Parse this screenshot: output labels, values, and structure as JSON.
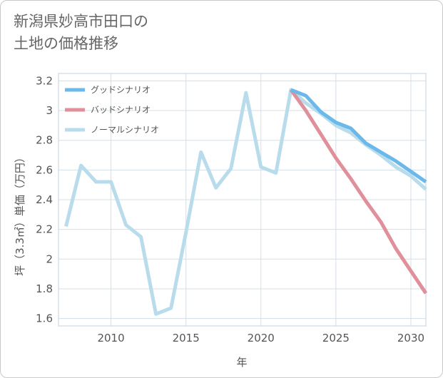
{
  "chart_data": {
    "type": "line",
    "title_lines": [
      "新潟県妙高市田口の",
      "土地の価格推移"
    ],
    "xlabel": "年",
    "ylabel": "坪（3.3㎡）単価（万円）",
    "xlim": [
      2006.5,
      2031
    ],
    "ylim": [
      1.55,
      3.25
    ],
    "xticks": [
      2010,
      2015,
      2020,
      2025,
      2030
    ],
    "yticks": [
      1.6,
      1.8,
      2.0,
      2.2,
      2.4,
      2.6,
      2.8,
      3.0,
      3.2
    ],
    "ytick_labels": [
      "1.6",
      "1.8",
      "2",
      "2.2",
      "2.4",
      "2.6",
      "2.8",
      "3",
      "3.2"
    ],
    "legend_position": "top-left",
    "series": [
      {
        "name": "グッドシナリオ",
        "color": "#6bb8ea",
        "x": [
          2022,
          2023,
          2024,
          2025,
          2026,
          2027,
          2028,
          2029,
          2030,
          2031
        ],
        "y": [
          3.14,
          3.1,
          2.99,
          2.92,
          2.88,
          2.78,
          2.72,
          2.66,
          2.59,
          2.52
        ]
      },
      {
        "name": "バッドシナリオ",
        "color": "#e0909a",
        "x": [
          2022,
          2023,
          2024,
          2025,
          2026,
          2027,
          2028,
          2029,
          2030,
          2031
        ],
        "y": [
          3.14,
          3.0,
          2.84,
          2.68,
          2.54,
          2.39,
          2.25,
          2.07,
          1.92,
          1.77
        ]
      },
      {
        "name": "ノーマルシナリオ",
        "color": "#b8dcec",
        "x": [
          2007,
          2008,
          2009,
          2010,
          2011,
          2012,
          2013,
          2014,
          2015,
          2016,
          2017,
          2018,
          2019,
          2020,
          2021,
          2022,
          2023,
          2024,
          2025,
          2026,
          2027,
          2028,
          2029,
          2030,
          2031
        ],
        "y": [
          2.22,
          2.63,
          2.52,
          2.52,
          2.23,
          2.15,
          1.63,
          1.67,
          2.18,
          2.72,
          2.48,
          2.61,
          3.12,
          2.62,
          2.58,
          3.14,
          3.05,
          2.98,
          2.9,
          2.85,
          2.77,
          2.7,
          2.62,
          2.56,
          2.47
        ]
      }
    ]
  }
}
